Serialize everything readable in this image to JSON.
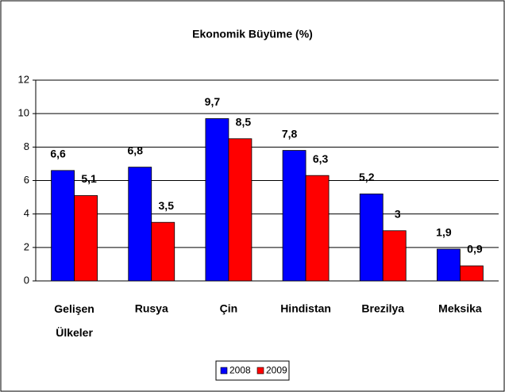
{
  "chart_data": {
    "type": "bar",
    "title": "Ekonomik Büyüme (%)",
    "categories": [
      "Gelişen Ülkeler",
      "Rusya",
      "Çin",
      "Hindistan",
      "Brezilya",
      "Meksika"
    ],
    "series": [
      {
        "name": "2008",
        "color": "#0000ff",
        "values": [
          6.6,
          6.8,
          9.7,
          7.8,
          5.2,
          1.9
        ],
        "value_labels": [
          "6,6",
          "6,8",
          "9,7",
          "7,8",
          "5,2",
          "1,9"
        ]
      },
      {
        "name": "2009",
        "color": "#ff0000",
        "values": [
          5.1,
          3.5,
          8.5,
          6.3,
          3,
          0.9
        ],
        "value_labels": [
          "5,1",
          "3,5",
          "8,5",
          "6,3",
          "3",
          "0,9"
        ]
      }
    ],
    "ylim": [
      0,
      12
    ],
    "yticks": [
      0,
      2,
      4,
      6,
      8,
      10,
      12
    ],
    "grid": true,
    "legend": "bottom"
  }
}
